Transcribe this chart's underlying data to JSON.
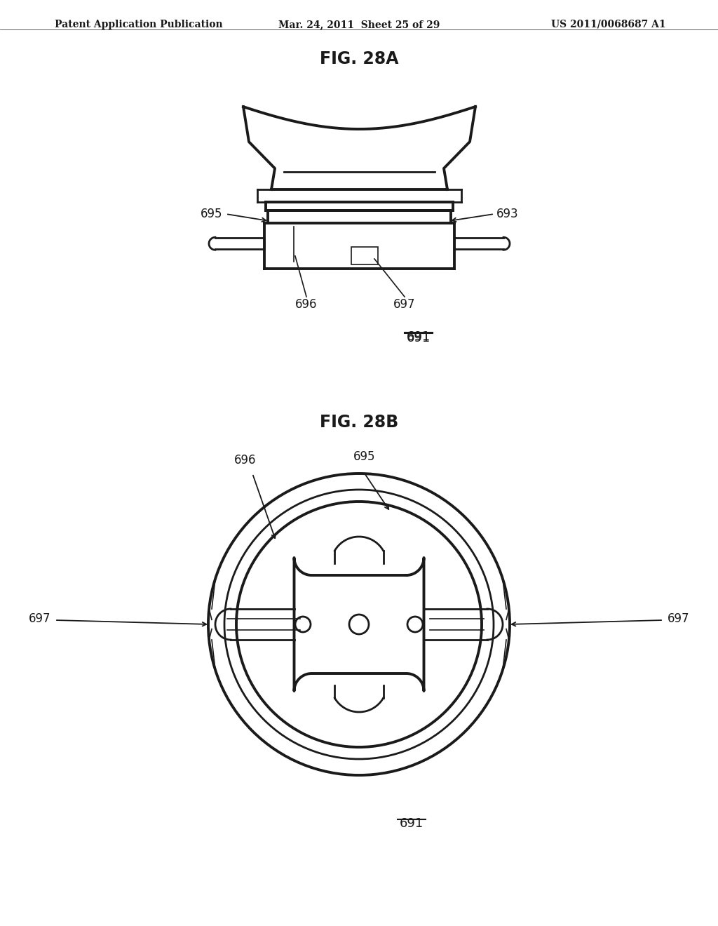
{
  "bg_color": "#ffffff",
  "line_color": "#1a1a1a",
  "header_left": "Patent Application Publication",
  "header_mid": "Mar. 24, 2011  Sheet 25 of 29",
  "header_right": "US 2011/0068687 A1",
  "fig_title_a": "FIG. 28A",
  "fig_title_b": "FIG. 28B",
  "label_691": "691",
  "label_693": "693",
  "label_695": "695",
  "label_696": "696",
  "label_697": "697",
  "header_fontsize": 10,
  "title_fontsize": 17,
  "label_fontsize": 12
}
